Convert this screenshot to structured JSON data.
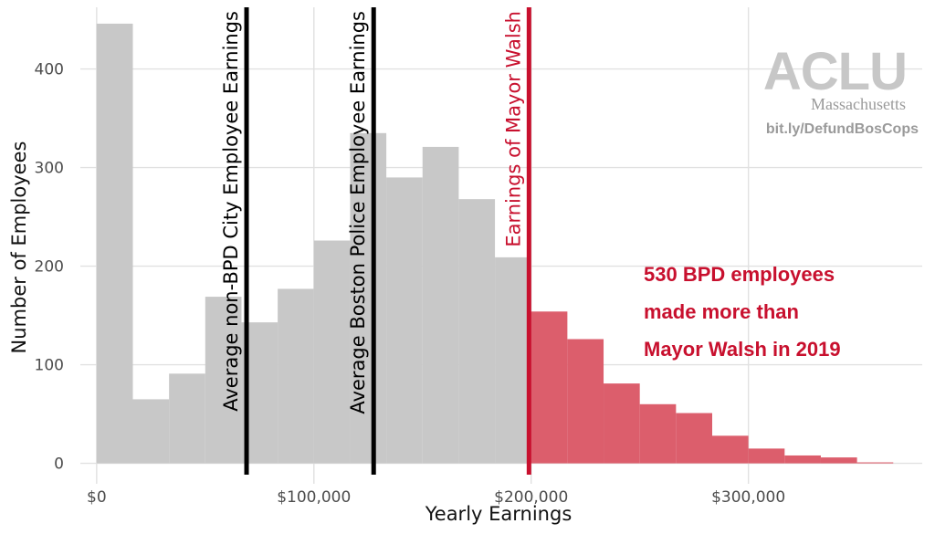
{
  "chart_data": {
    "type": "bar",
    "xlabel": "Yearly Earnings",
    "ylabel": "Number of Employees",
    "xlim": [
      -7500,
      380000
    ],
    "ylim": [
      -30,
      470
    ],
    "x_ticks": [
      0,
      100000,
      200000,
      300000
    ],
    "x_tick_labels": [
      "$0",
      "$100,000",
      "$200,000",
      "$300,000"
    ],
    "y_ticks": [
      0,
      100,
      200,
      300,
      400
    ],
    "y_tick_labels": [
      "0",
      "100",
      "200",
      "300",
      "400"
    ],
    "grid": true,
    "bin_width": 16667,
    "bins": [
      {
        "x0": 0,
        "x1": 16667,
        "count": 446,
        "group": "below"
      },
      {
        "x0": 16667,
        "x1": 33333,
        "count": 65,
        "group": "below"
      },
      {
        "x0": 33333,
        "x1": 50000,
        "count": 91,
        "group": "below"
      },
      {
        "x0": 50000,
        "x1": 66667,
        "count": 169,
        "group": "below"
      },
      {
        "x0": 66667,
        "x1": 83333,
        "count": 143,
        "group": "below"
      },
      {
        "x0": 83333,
        "x1": 100000,
        "count": 177,
        "group": "below"
      },
      {
        "x0": 100000,
        "x1": 116667,
        "count": 226,
        "group": "below"
      },
      {
        "x0": 116667,
        "x1": 133333,
        "count": 335,
        "group": "below"
      },
      {
        "x0": 133333,
        "x1": 150000,
        "count": 290,
        "group": "below"
      },
      {
        "x0": 150000,
        "x1": 166667,
        "count": 321,
        "group": "below"
      },
      {
        "x0": 166667,
        "x1": 183333,
        "count": 268,
        "group": "below"
      },
      {
        "x0": 183333,
        "x1": 199000,
        "count": 209,
        "group": "below"
      },
      {
        "x0": 199000,
        "x1": 216667,
        "count": 154,
        "group": "above"
      },
      {
        "x0": 216667,
        "x1": 233333,
        "count": 126,
        "group": "above"
      },
      {
        "x0": 233333,
        "x1": 250000,
        "count": 81,
        "group": "above"
      },
      {
        "x0": 250000,
        "x1": 266667,
        "count": 60,
        "group": "above"
      },
      {
        "x0": 266667,
        "x1": 283333,
        "count": 51,
        "group": "above"
      },
      {
        "x0": 283333,
        "x1": 300000,
        "count": 28,
        "group": "above"
      },
      {
        "x0": 300000,
        "x1": 316667,
        "count": 15,
        "group": "above"
      },
      {
        "x0": 316667,
        "x1": 333333,
        "count": 8,
        "group": "above"
      },
      {
        "x0": 333333,
        "x1": 350000,
        "count": 6,
        "group": "above"
      },
      {
        "x0": 350000,
        "x1": 366667,
        "count": 1,
        "group": "above"
      }
    ],
    "reference_lines": [
      {
        "label": "Average non-BPD City Employee Earnings",
        "x": 69000,
        "color": "#000000"
      },
      {
        "label": "Average Boston Police Employee Earnings",
        "x": 127500,
        "color": "#000000"
      },
      {
        "label": "Earnings of Mayor Walsh",
        "x": 199000,
        "color": "#c8102e"
      }
    ],
    "annotation_lines": [
      "530 BPD employees",
      "made more than",
      "Mayor Walsh in 2019"
    ],
    "colors": {
      "below": "#c8c8c8",
      "above": "#dc5e6c",
      "accent": "#c8102e",
      "grid": "#e1e1e1"
    }
  },
  "branding": {
    "logo": "ACLU",
    "state": "Massachusetts",
    "url": "bit.ly/DefundBosCops"
  }
}
